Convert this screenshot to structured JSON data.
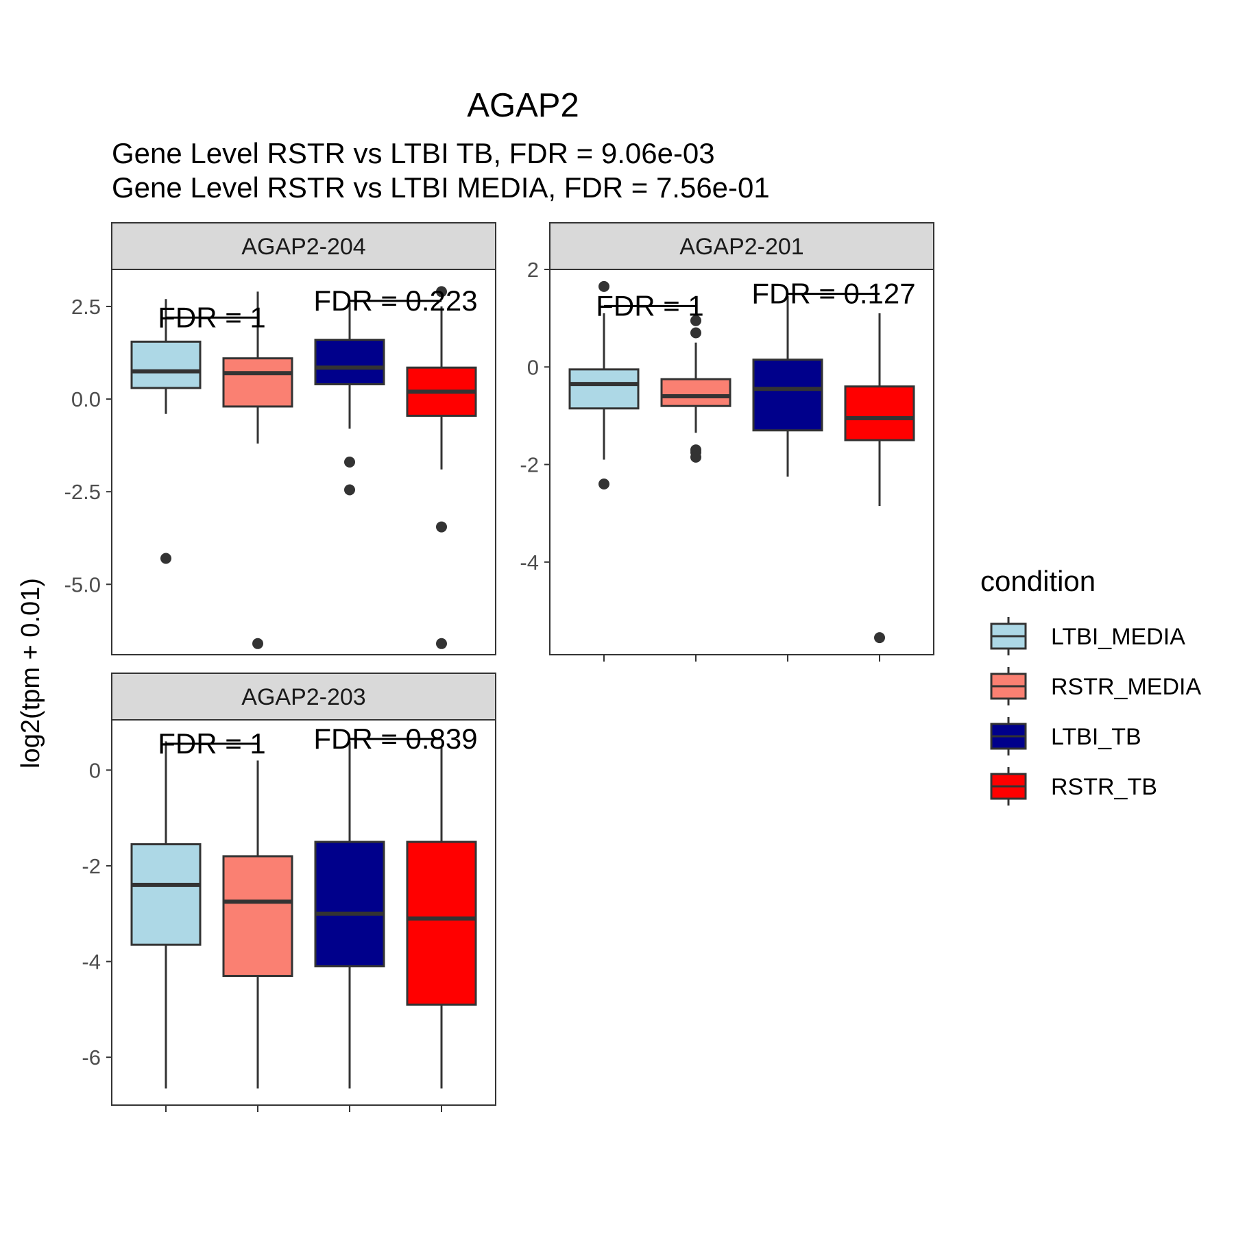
{
  "chart_data": {
    "type": "box",
    "title": "AGAP2",
    "subtitle_lines": [
      "Gene Level RSTR vs LTBI TB, FDR =  9.06e-03",
      "Gene Level RSTR vs LTBI MEDIA, FDR =  7.56e-01"
    ],
    "ylabel": "log2(tpm + 0.01)",
    "legend": {
      "title": "condition",
      "position": "right",
      "items": [
        {
          "label": "LTBI_MEDIA",
          "color": "#add8e6"
        },
        {
          "label": "RSTR_MEDIA",
          "color": "#fa8072"
        },
        {
          "label": "LTBI_TB",
          "color": "#00008b"
        },
        {
          "label": "RSTR_TB",
          "color": "#ff0000"
        }
      ]
    },
    "categories": [
      "LTBI_MEDIA",
      "RSTR_MEDIA",
      "LTBI_TB",
      "RSTR_TB"
    ],
    "panels": [
      {
        "strip": "AGAP2-204",
        "ylim": [
          -6.9,
          3.5
        ],
        "yticks": [
          2.5,
          0.0,
          -2.5,
          -5.0
        ],
        "ytick_labels": [
          "2.5",
          "0.0",
          "-2.5",
          "-5.0"
        ],
        "boxes": [
          {
            "q1": 0.3,
            "median": 0.75,
            "q3": 1.55,
            "whisker_low": -0.4,
            "whisker_high": 2.7,
            "outliers": [
              -4.3
            ]
          },
          {
            "q1": -0.2,
            "median": 0.7,
            "q3": 1.1,
            "whisker_low": -1.2,
            "whisker_high": 2.9,
            "outliers": [
              -6.6
            ]
          },
          {
            "q1": 0.4,
            "median": 0.85,
            "q3": 1.6,
            "whisker_low": -0.8,
            "whisker_high": 2.6,
            "outliers": [
              -1.7,
              -2.45
            ]
          },
          {
            "q1": -0.45,
            "median": 0.2,
            "q3": 0.85,
            "whisker_low": -1.9,
            "whisker_high": 2.5,
            "outliers": [
              2.9,
              -3.45,
              -6.6
            ]
          }
        ],
        "annotations": [
          {
            "text": "FDR =  1",
            "between": [
              0,
              1
            ],
            "y": 2.2
          },
          {
            "text": "FDR =  0.223",
            "between": [
              2,
              3
            ],
            "y": 2.65
          }
        ]
      },
      {
        "strip": "AGAP2-201",
        "ylim": [
          -5.9,
          2.0
        ],
        "yticks": [
          2,
          0,
          -2,
          -4
        ],
        "ytick_labels": [
          "2",
          "0",
          "-2",
          "-4"
        ],
        "boxes": [
          {
            "q1": -0.85,
            "median": -0.35,
            "q3": -0.05,
            "whisker_low": -1.9,
            "whisker_high": 1.1,
            "outliers": [
              1.65,
              -2.4
            ]
          },
          {
            "q1": -0.8,
            "median": -0.6,
            "q3": -0.25,
            "whisker_low": -1.35,
            "whisker_high": 0.5,
            "outliers": [
              0.95,
              0.7,
              -1.7,
              -1.75,
              -1.85
            ]
          },
          {
            "q1": -1.3,
            "median": -0.45,
            "q3": 0.15,
            "whisker_low": -2.25,
            "whisker_high": 1.45,
            "outliers": []
          },
          {
            "q1": -1.5,
            "median": -1.05,
            "q3": -0.4,
            "whisker_low": -2.85,
            "whisker_high": 1.1,
            "outliers": [
              -5.55
            ]
          }
        ],
        "annotations": [
          {
            "text": "FDR =  1",
            "between": [
              0,
              1
            ],
            "y": 1.25
          },
          {
            "text": "FDR =  0.127",
            "between": [
              2,
              3
            ],
            "y": 1.5
          }
        ]
      },
      {
        "strip": "AGAP2-203",
        "ylim": [
          -7.0,
          1.05
        ],
        "yticks": [
          0,
          -2,
          -4,
          -6
        ],
        "ytick_labels": [
          "0",
          "-2",
          "-4",
          "-6"
        ],
        "boxes": [
          {
            "q1": -3.65,
            "median": -2.4,
            "q3": -1.55,
            "whisker_low": -6.65,
            "whisker_high": 0.6,
            "outliers": []
          },
          {
            "q1": -4.3,
            "median": -2.75,
            "q3": -1.8,
            "whisker_low": -6.65,
            "whisker_high": 0.2,
            "outliers": []
          },
          {
            "q1": -4.1,
            "median": -3.0,
            "q3": -1.5,
            "whisker_low": -6.65,
            "whisker_high": 0.6,
            "outliers": []
          },
          {
            "q1": -4.9,
            "median": -3.1,
            "q3": -1.5,
            "whisker_low": -6.65,
            "whisker_high": 0.5,
            "outliers": []
          }
        ],
        "annotations": [
          {
            "text": "FDR =  1",
            "between": [
              0,
              1
            ],
            "y": 0.55
          },
          {
            "text": "FDR =  0.839",
            "between": [
              2,
              3
            ],
            "y": 0.65
          }
        ]
      }
    ]
  }
}
